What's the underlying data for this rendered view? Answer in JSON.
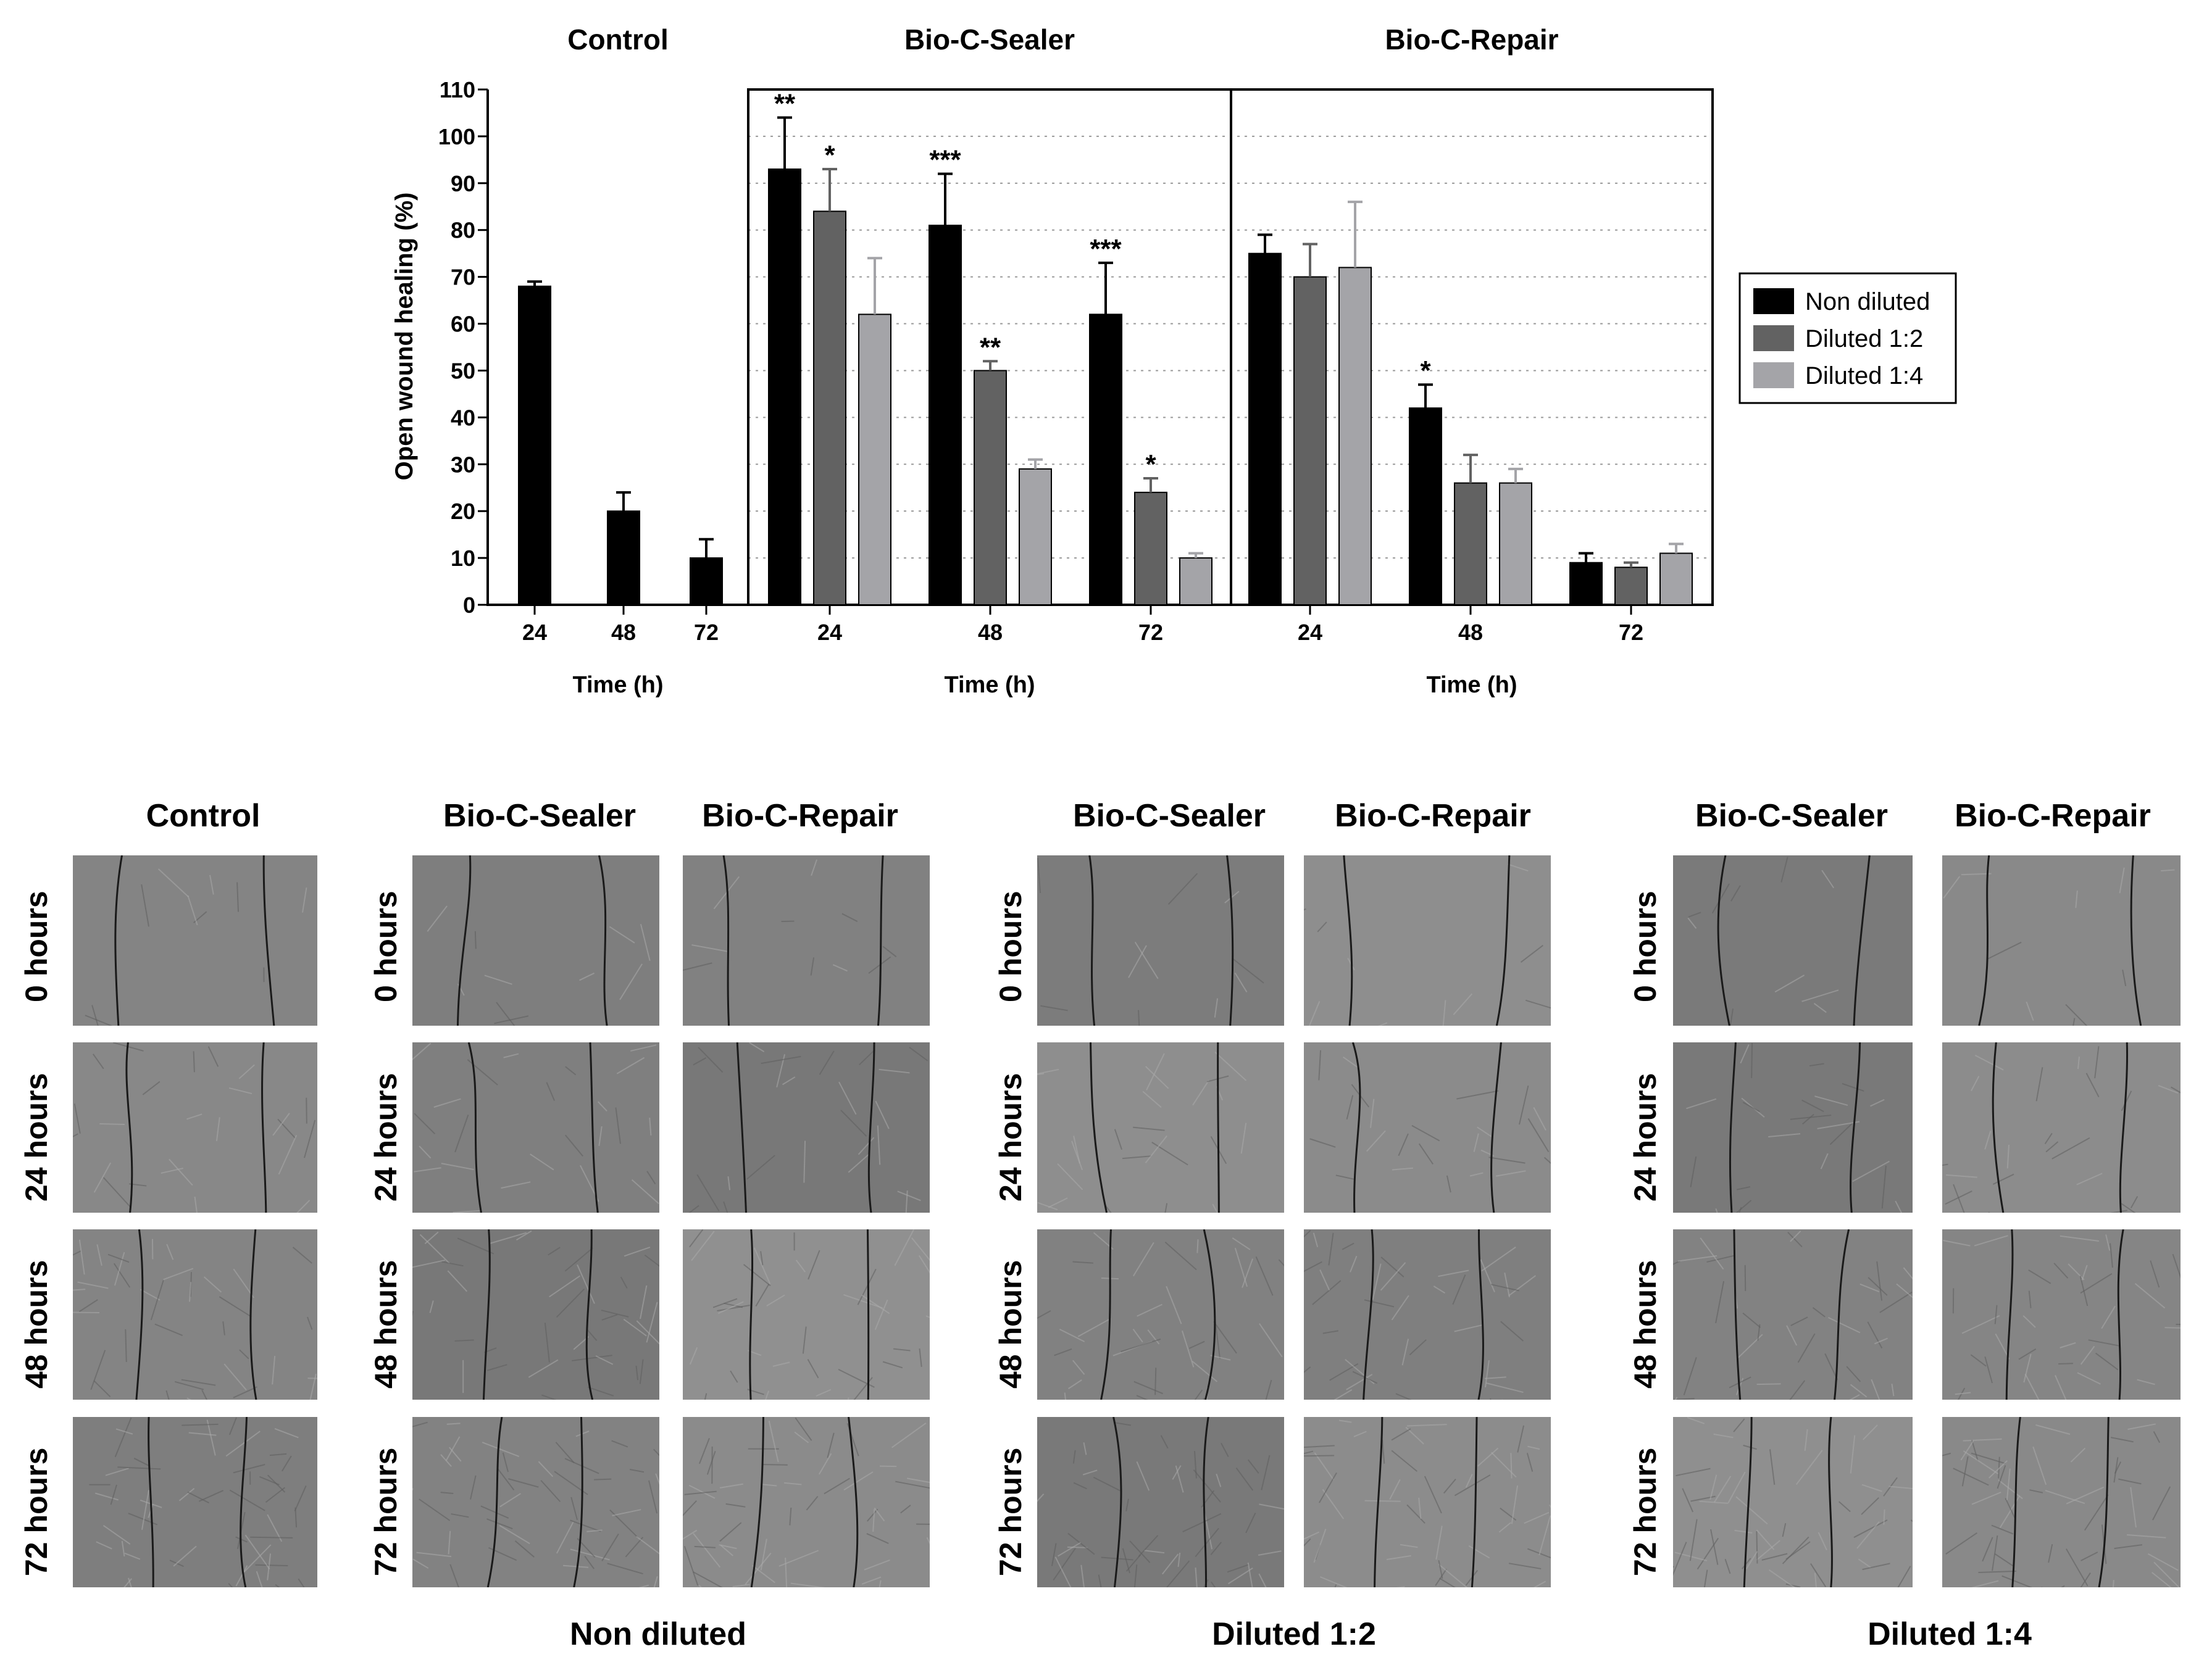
{
  "chart_data": {
    "type": "bar",
    "ylabel": "Open wound healing (%)",
    "xlabel": "Time (h)",
    "ylim": [
      0,
      110
    ],
    "yticks": [
      0,
      10,
      20,
      30,
      40,
      50,
      60,
      70,
      80,
      90,
      100,
      110
    ],
    "grid": true,
    "legend_position": "right",
    "legend": [
      {
        "name": "Non diluted",
        "color": "#000000"
      },
      {
        "name": "Diluted 1:2",
        "color": "#626262"
      },
      {
        "name": "Diluted 1:4",
        "color": "#a4a4a8"
      }
    ],
    "panels": [
      {
        "title": "Control",
        "categories": [
          "24",
          "48",
          "72"
        ],
        "series": [
          {
            "name": "Non diluted",
            "values": [
              68,
              20,
              10
            ],
            "errors": [
              1,
              4,
              4
            ],
            "sig": [
              "",
              "",
              ""
            ]
          }
        ]
      },
      {
        "title": "Bio-C-Sealer",
        "categories": [
          "24",
          "48",
          "72"
        ],
        "series": [
          {
            "name": "Non diluted",
            "values": [
              93,
              81,
              62
            ],
            "errors": [
              11,
              11,
              11
            ],
            "sig": [
              "**",
              "***",
              "***"
            ]
          },
          {
            "name": "Diluted 1:2",
            "values": [
              84,
              50,
              24
            ],
            "errors": [
              9,
              2,
              3
            ],
            "sig": [
              "*",
              "**",
              "*"
            ]
          },
          {
            "name": "Diluted 1:4",
            "values": [
              62,
              29,
              10
            ],
            "errors": [
              12,
              2,
              1
            ],
            "sig": [
              "",
              "",
              ""
            ]
          }
        ]
      },
      {
        "title": "Bio-C-Repair",
        "categories": [
          "24",
          "48",
          "72"
        ],
        "series": [
          {
            "name": "Non diluted",
            "values": [
              75,
              42,
              9
            ],
            "errors": [
              4,
              5,
              2
            ],
            "sig": [
              "",
              "*",
              ""
            ]
          },
          {
            "name": "Diluted 1:2",
            "values": [
              70,
              26,
              8
            ],
            "errors": [
              7,
              6,
              1
            ],
            "sig": [
              "",
              "",
              ""
            ]
          },
          {
            "name": "Diluted 1:4",
            "values": [
              72,
              26,
              11
            ],
            "errors": [
              14,
              3,
              2
            ],
            "sig": [
              "",
              "",
              ""
            ]
          }
        ]
      }
    ]
  },
  "micrographs": {
    "row_labels": [
      "0 hours",
      "24 hours",
      "48 hours",
      "72 hours"
    ],
    "groups": [
      {
        "caption": "",
        "columns": [
          "Control"
        ]
      },
      {
        "caption": "Non diluted",
        "columns": [
          "Bio-C-Sealer",
          "Bio-C-Repair"
        ]
      },
      {
        "caption": "Diluted 1:2",
        "columns": [
          "Bio-C-Sealer",
          "Bio-C-Repair"
        ]
      },
      {
        "caption": "Diluted 1:4",
        "columns": [
          "Bio-C-Sealer",
          "Bio-C-Repair"
        ]
      }
    ]
  }
}
